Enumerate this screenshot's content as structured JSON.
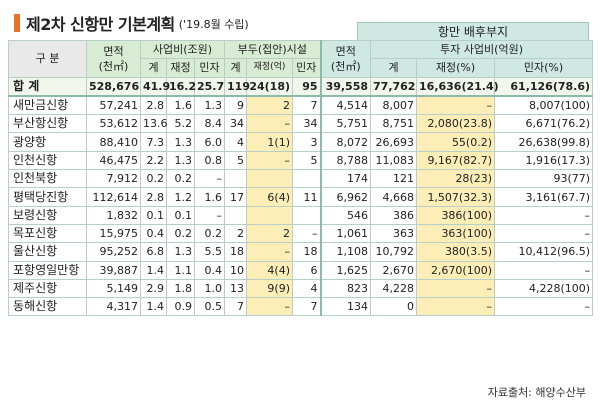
{
  "title": "제2차 신항만 기본계획",
  "subtitle": "('19.8월 수립)",
  "header": {
    "gubun": "구 분",
    "area": "면적",
    "area_unit": "(천㎡)",
    "biz_cost": "사업비(조원)",
    "pier": "부두(접안)시설",
    "hinterland": "항만 배후부지",
    "hb_area": "면적",
    "hb_area_unit": "(천㎡)",
    "hb_invest": "투자 사업비(억원)",
    "total": "계",
    "fiscal": "재정",
    "private": "민자",
    "fiscal_ratio": "재정(억)",
    "fiscal_pct": "재정(%)",
    "private_pct": "민자(%)"
  },
  "rows": [
    {
      "name": "합  계",
      "area": "528,676",
      "c_total": "41.9",
      "c_fiscal": "16.2",
      "c_private": "25.7",
      "p_total": "119",
      "p_fiscal": "24(18)",
      "p_private": "95",
      "h_area": "39,558",
      "h_total": "77,762",
      "h_fiscal": "16,636(21.4)",
      "h_private": "61,126(78.6)"
    },
    {
      "name": "새만금신항",
      "area": "57,241",
      "c_total": "2.8",
      "c_fiscal": "1.6",
      "c_private": "1.3",
      "p_total": "9",
      "p_fiscal": "2",
      "p_private": "7",
      "h_area": "4,514",
      "h_total": "8,007",
      "h_fiscal": "–",
      "h_private": "8,007(100)"
    },
    {
      "name": "부산항신항",
      "area": "53,612",
      "c_total": "13.6",
      "c_fiscal": "5.2",
      "c_private": "8.4",
      "p_total": "34",
      "p_fiscal": "–",
      "p_private": "34",
      "h_area": "5,751",
      "h_total": "8,751",
      "h_fiscal": "2,080(23.8)",
      "h_private": "6,671(76.2)"
    },
    {
      "name": "광양항",
      "area": "88,410",
      "c_total": "7.3",
      "c_fiscal": "1.3",
      "c_private": "6.0",
      "p_total": "4",
      "p_fiscal": "1(1)",
      "p_private": "3",
      "h_area": "8,072",
      "h_total": "26,693",
      "h_fiscal": "55(0.2)",
      "h_private": "26,638(99.8)"
    },
    {
      "name": "인천신항",
      "area": "46,475",
      "c_total": "2.2",
      "c_fiscal": "1.3",
      "c_private": "0.8",
      "p_total": "5",
      "p_fiscal": "–",
      "p_private": "5",
      "h_area": "8,788",
      "h_total": "11,083",
      "h_fiscal": "9,167(82.7)",
      "h_private": "1,916(17.3)"
    },
    {
      "name": "인천북항",
      "area": "7,912",
      "c_total": "0.2",
      "c_fiscal": "0.2",
      "c_private": "–",
      "p_total": "",
      "p_fiscal": "",
      "p_private": "",
      "h_area": "174",
      "h_total": "121",
      "h_fiscal": "28(23)",
      "h_private": "93(77)"
    },
    {
      "name": "평택당진항",
      "area": "112,614",
      "c_total": "2.8",
      "c_fiscal": "1.2",
      "c_private": "1.6",
      "p_total": "17",
      "p_fiscal": "6(4)",
      "p_private": "11",
      "h_area": "6,962",
      "h_total": "4,668",
      "h_fiscal": "1,507(32.3)",
      "h_private": "3,161(67.7)"
    },
    {
      "name": "보령신항",
      "area": "1,832",
      "c_total": "0.1",
      "c_fiscal": "0.1",
      "c_private": "–",
      "p_total": "",
      "p_fiscal": "",
      "p_private": "",
      "h_area": "546",
      "h_total": "386",
      "h_fiscal": "386(100)",
      "h_private": "–"
    },
    {
      "name": "목포신항",
      "area": "15,975",
      "c_total": "0.4",
      "c_fiscal": "0.2",
      "c_private": "0.2",
      "p_total": "2",
      "p_fiscal": "2",
      "p_private": "–",
      "h_area": "1,061",
      "h_total": "363",
      "h_fiscal": "363(100)",
      "h_private": "–"
    },
    {
      "name": "울산신항",
      "area": "95,252",
      "c_total": "6.8",
      "c_fiscal": "1.3",
      "c_private": "5.5",
      "p_total": "18",
      "p_fiscal": "–",
      "p_private": "18",
      "h_area": "1,108",
      "h_total": "10,792",
      "h_fiscal": "380(3.5)",
      "h_private": "10,412(96.5)"
    },
    {
      "name": "포항영일만항",
      "area": "39,887",
      "c_total": "1.4",
      "c_fiscal": "1.1",
      "c_private": "0.4",
      "p_total": "10",
      "p_fiscal": "4(4)",
      "p_private": "6",
      "h_area": "1,625",
      "h_total": "2,670",
      "h_fiscal": "2,670(100)",
      "h_private": "–"
    },
    {
      "name": "제주신항",
      "area": "5,149",
      "c_total": "2.9",
      "c_fiscal": "1.8",
      "c_private": "1.0",
      "p_total": "13",
      "p_fiscal": "9(9)",
      "p_private": "4",
      "h_area": "823",
      "h_total": "4,228",
      "h_fiscal": "–",
      "h_private": "4,228(100)"
    },
    {
      "name": "동해신항",
      "area": "4,317",
      "c_total": "1.4",
      "c_fiscal": "0.9",
      "c_private": "0.5",
      "p_total": "7",
      "p_fiscal": "–",
      "p_private": "7",
      "h_area": "134",
      "h_total": "0",
      "h_fiscal": "–",
      "h_private": "–"
    }
  ],
  "source": "자료출처: 해양수산부",
  "colors": {
    "accent": "#e8742a",
    "header_green": "#d7ecd2",
    "header_teal": "#cfe9e2",
    "highlight": "#fdeeb8"
  }
}
